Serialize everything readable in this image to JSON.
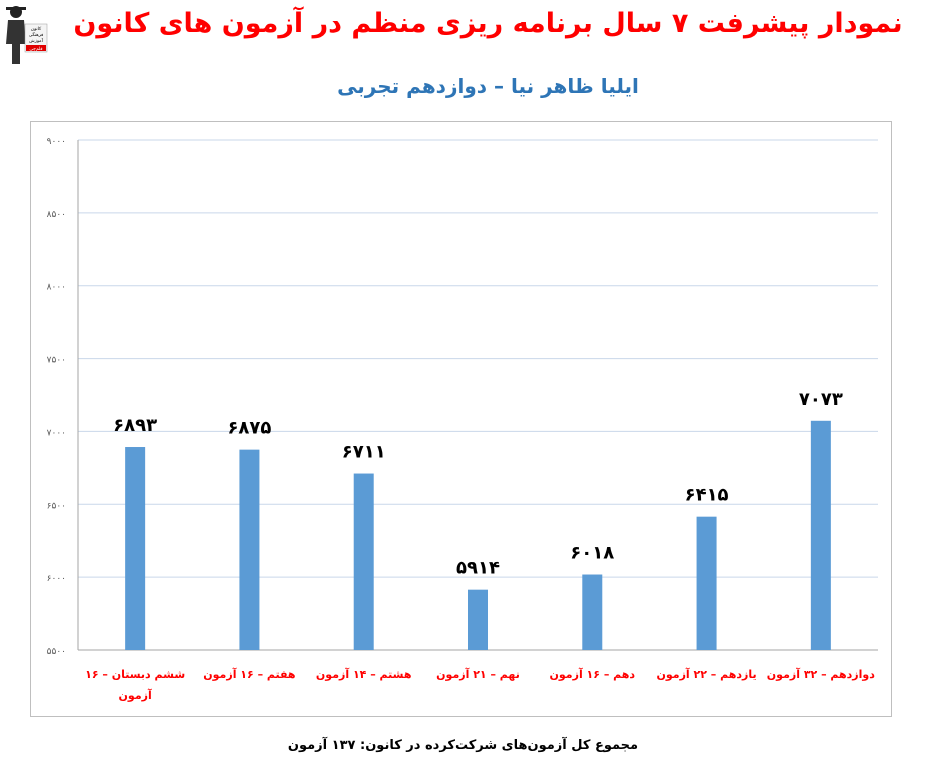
{
  "title": "نمودار پیشرفت ۷ سال برنامه ریزی منظم در آزمون های کانون",
  "subtitle": "ایلیا ظاهر نیا – دوازدهم تجربی",
  "logo": {
    "lines": [
      "کانون",
      "فرهنگی",
      "آموزش",
      "قلم‌چی"
    ]
  },
  "footer": "مجموع کل آزمون‌های شرکت‌کرده در کانون: ۱۳۷ آزمون",
  "colors": {
    "title": "#ff0000",
    "subtitle": "#2e75b6",
    "bar": "#5b9bd5",
    "category": "#ff0000"
  },
  "chart_data": {
    "type": "bar",
    "categories": [
      "ششم دبستان – ۱۶ آزمون",
      "هفتم – ۱۶ آزمون",
      "هشتم – ۱۴ آزمون",
      "نهم – ۲۱ آزمون",
      "دهم – ۱۶ آزمون",
      "یازدهم – ۲۲ آزمون",
      "دوازدهم – ۳۲ آزمون"
    ],
    "values": [
      6893,
      6875,
      6711,
      5914,
      6018,
      6415,
      7073
    ],
    "value_labels": [
      "۶۸۹۳",
      "۶۸۷۵",
      "۶۷۱۱",
      "۵۹۱۴",
      "۶۰۱۸",
      "۶۴۱۵",
      "۷۰۷۳"
    ],
    "ylim": [
      5500,
      9000
    ],
    "yticks": [
      "۵۵۰۰",
      "۶۰۰۰",
      "۶۵۰۰",
      "۷۰۰۰",
      "۷۵۰۰",
      "۸۰۰۰",
      "۸۵۰۰",
      "۹۰۰۰"
    ],
    "grid": true
  }
}
